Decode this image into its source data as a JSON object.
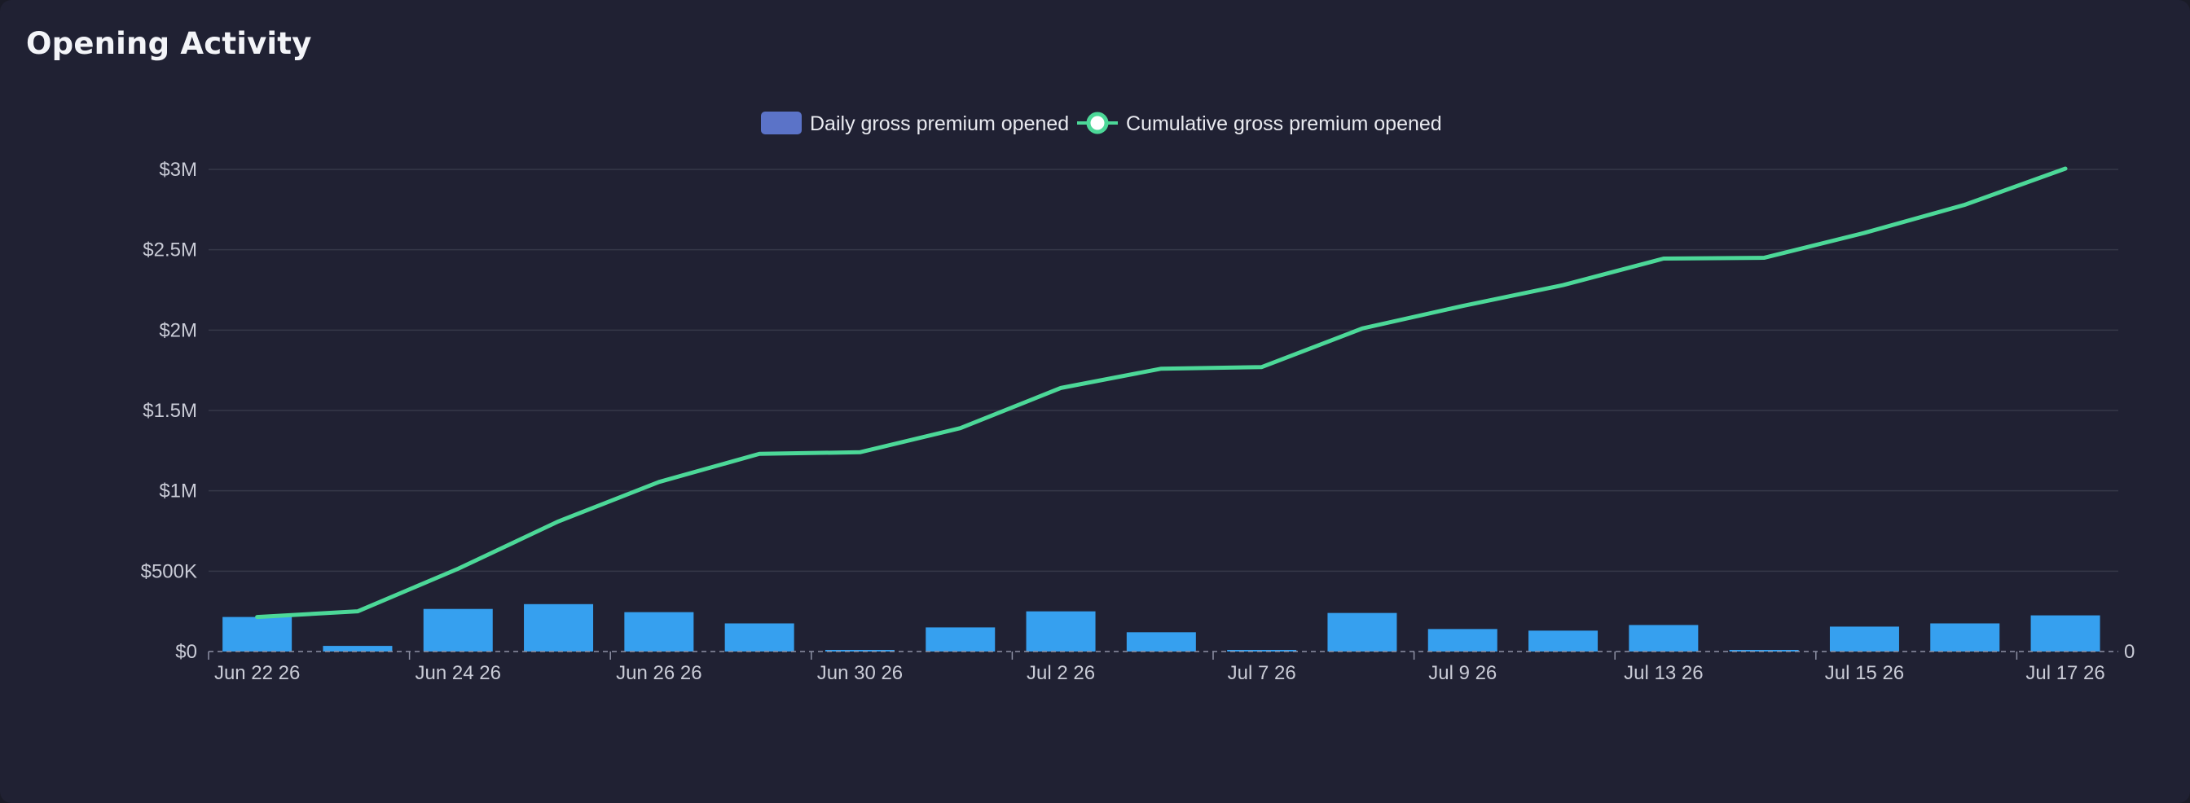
{
  "card": {
    "title": "Opening Activity"
  },
  "colors": {
    "background": "#202133",
    "bar": "#36a0ef",
    "legend_bar_swatch": "#5b73c8",
    "line": "#4cd898",
    "grid": "#363849",
    "text": "#c9cbd6"
  },
  "chart_data": {
    "type": "bar+line",
    "legend": {
      "placement": "top-center",
      "items": [
        {
          "name": "Daily gross premium opened",
          "kind": "bar"
        },
        {
          "name": "Cumulative gross premium opened",
          "kind": "line"
        }
      ]
    },
    "y_axis": {
      "min": 0,
      "max": 3000000,
      "ticks": [
        {
          "value": 0,
          "label": "$0"
        },
        {
          "value": 500000,
          "label": "$500K"
        },
        {
          "value": 1000000,
          "label": "$1M"
        },
        {
          "value": 1500000,
          "label": "$1.5M"
        },
        {
          "value": 2000000,
          "label": "$2M"
        },
        {
          "value": 2500000,
          "label": "$2.5M"
        },
        {
          "value": 3000000,
          "label": "$3M"
        }
      ],
      "grid": true
    },
    "right_axis_label": "0",
    "x_tick_labels": [
      {
        "index": 0,
        "label": "Jun 22 26"
      },
      {
        "index": 2,
        "label": "Jun 24 26"
      },
      {
        "index": 4,
        "label": "Jun 26 26"
      },
      {
        "index": 6,
        "label": "Jun 30 26"
      },
      {
        "index": 8,
        "label": "Jul 2 26"
      },
      {
        "index": 10,
        "label": "Jul 7 26"
      },
      {
        "index": 12,
        "label": "Jul 9 26"
      },
      {
        "index": 14,
        "label": "Jul 13 26"
      },
      {
        "index": 16,
        "label": "Jul 15 26"
      },
      {
        "index": 18,
        "label": "Jul 17 26"
      }
    ],
    "series": [
      {
        "name": "Daily gross premium opened",
        "type": "bar",
        "values": [
          215000,
          35000,
          265000,
          295000,
          245000,
          175000,
          10000,
          150000,
          250000,
          120000,
          10000,
          240000,
          140000,
          130000,
          165000,
          5000,
          155000,
          175000,
          225000
        ]
      },
      {
        "name": "Cumulative gross premium opened",
        "type": "line",
        "values": [
          215000,
          250000,
          515000,
          810000,
          1055000,
          1230000,
          1240000,
          1390000,
          1640000,
          1760000,
          1770000,
          2010000,
          2150000,
          2280000,
          2445000,
          2450000,
          2605000,
          2780000,
          3005000
        ]
      }
    ]
  }
}
